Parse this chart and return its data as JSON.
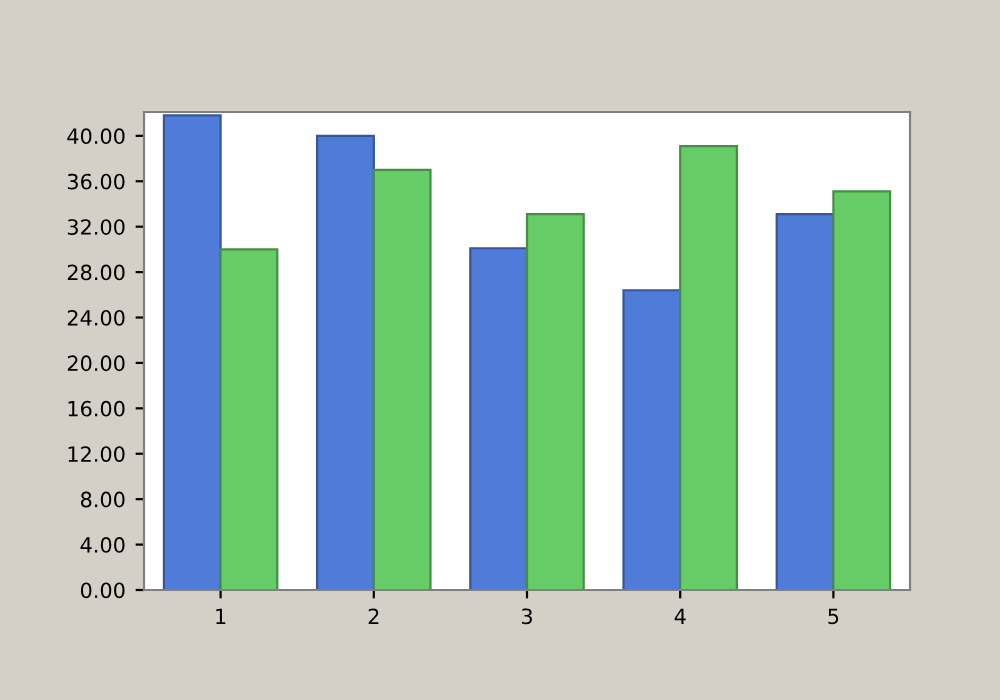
{
  "chart_data": {
    "type": "bar",
    "categories": [
      "1",
      "2",
      "3",
      "4",
      "5"
    ],
    "series": [
      {
        "color": "#4f7bd9",
        "values": [
          41.8,
          40.0,
          30.1,
          26.4,
          33.1
        ]
      },
      {
        "color": "#66cc66",
        "values": [
          30.0,
          37.0,
          33.1,
          39.1,
          35.1
        ]
      }
    ],
    "ylim": [
      0,
      42.1
    ],
    "yticks": [
      {
        "value": 0,
        "label": "0.00"
      },
      {
        "value": 4,
        "label": "4.00"
      },
      {
        "value": 8,
        "label": "8.00"
      },
      {
        "value": 12,
        "label": "12.00"
      },
      {
        "value": 16,
        "label": "16.00"
      },
      {
        "value": 20,
        "label": "20.00"
      },
      {
        "value": 24,
        "label": "24.00"
      },
      {
        "value": 28,
        "label": "28.00"
      },
      {
        "value": 32,
        "label": "32.00"
      },
      {
        "value": 36,
        "label": "36.00"
      },
      {
        "value": 40,
        "label": "40.00"
      }
    ],
    "grid": false
  }
}
